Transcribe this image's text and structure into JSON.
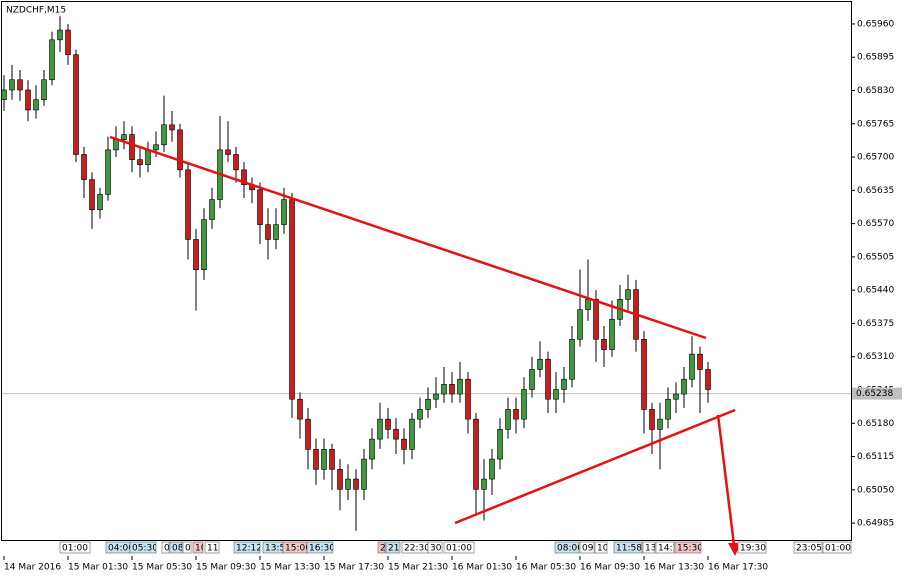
{
  "chart_data": {
    "type": "candlestick",
    "title": "NZDCHF,M15",
    "candles": [
      [
        0.65812,
        0.6586,
        0.6579,
        0.65831
      ],
      [
        0.65831,
        0.6588,
        0.65812,
        0.65851
      ],
      [
        0.65851,
        0.6587,
        0.6581,
        0.65831
      ],
      [
        0.65831,
        0.6585,
        0.6577,
        0.65792
      ],
      [
        0.65792,
        0.6584,
        0.65775,
        0.65812
      ],
      [
        0.65812,
        0.6587,
        0.658,
        0.65851
      ],
      [
        0.65851,
        0.65945,
        0.6584,
        0.65929
      ],
      [
        0.65929,
        0.65975,
        0.65905,
        0.65948
      ],
      [
        0.65948,
        0.6596,
        0.6588,
        0.659
      ],
      [
        0.659,
        0.6591,
        0.6569,
        0.65705
      ],
      [
        0.65705,
        0.6572,
        0.6562,
        0.65656
      ],
      [
        0.65656,
        0.6567,
        0.6556,
        0.65597
      ],
      [
        0.65597,
        0.6564,
        0.6558,
        0.65627
      ],
      [
        0.65627,
        0.6574,
        0.65615,
        0.65714
      ],
      [
        0.65714,
        0.6576,
        0.657,
        0.65734
      ],
      [
        0.65734,
        0.6577,
        0.65715,
        0.65744
      ],
      [
        0.65744,
        0.6576,
        0.6567,
        0.65695
      ],
      [
        0.65695,
        0.6572,
        0.6566,
        0.65685
      ],
      [
        0.65685,
        0.6573,
        0.6567,
        0.65714
      ],
      [
        0.65714,
        0.6575,
        0.657,
        0.65724
      ],
      [
        0.65724,
        0.6582,
        0.6571,
        0.65763
      ],
      [
        0.65763,
        0.6579,
        0.6573,
        0.65753
      ],
      [
        0.65753,
        0.65765,
        0.6566,
        0.65675
      ],
      [
        0.65675,
        0.6569,
        0.655,
        0.65539
      ],
      [
        0.65539,
        0.6556,
        0.654,
        0.6548
      ],
      [
        0.6548,
        0.656,
        0.6546,
        0.65578
      ],
      [
        0.65578,
        0.6564,
        0.6556,
        0.65617
      ],
      [
        0.65617,
        0.6578,
        0.656,
        0.65714
      ],
      [
        0.65714,
        0.6577,
        0.6569,
        0.65705
      ],
      [
        0.65705,
        0.6572,
        0.6565,
        0.65675
      ],
      [
        0.65675,
        0.6569,
        0.6562,
        0.65646
      ],
      [
        0.65646,
        0.6566,
        0.6561,
        0.65636
      ],
      [
        0.65636,
        0.6565,
        0.6553,
        0.65568
      ],
      [
        0.65568,
        0.656,
        0.655,
        0.65539
      ],
      [
        0.65539,
        0.656,
        0.6552,
        0.65568
      ],
      [
        0.65568,
        0.6564,
        0.6555,
        0.65617
      ],
      [
        0.65617,
        0.6563,
        0.6519,
        0.65227
      ],
      [
        0.65227,
        0.6524,
        0.6515,
        0.65188
      ],
      [
        0.65188,
        0.6521,
        0.6509,
        0.65129
      ],
      [
        0.65129,
        0.6515,
        0.6506,
        0.6509
      ],
      [
        0.6509,
        0.6515,
        0.6507,
        0.65129
      ],
      [
        0.65129,
        0.6514,
        0.6505,
        0.6509
      ],
      [
        0.6509,
        0.6511,
        0.6501,
        0.65051
      ],
      [
        0.65051,
        0.651,
        0.6503,
        0.65071
      ],
      [
        0.65071,
        0.6509,
        0.6497,
        0.65051
      ],
      [
        0.65051,
        0.6513,
        0.6503,
        0.6511
      ],
      [
        0.6511,
        0.6517,
        0.6509,
        0.65149
      ],
      [
        0.65149,
        0.6522,
        0.6513,
        0.65188
      ],
      [
        0.65188,
        0.6521,
        0.6515,
        0.65168
      ],
      [
        0.65168,
        0.6519,
        0.6512,
        0.65149
      ],
      [
        0.65149,
        0.6517,
        0.651,
        0.65129
      ],
      [
        0.65129,
        0.652,
        0.6511,
        0.65188
      ],
      [
        0.65188,
        0.6523,
        0.6517,
        0.65207
      ],
      [
        0.65207,
        0.6525,
        0.6519,
        0.65227
      ],
      [
        0.65227,
        0.6527,
        0.6521,
        0.65237
      ],
      [
        0.65237,
        0.6529,
        0.6522,
        0.65256
      ],
      [
        0.65256,
        0.6528,
        0.6522,
        0.65237
      ],
      [
        0.65237,
        0.653,
        0.6522,
        0.65266
      ],
      [
        0.65266,
        0.6528,
        0.6516,
        0.65188
      ],
      [
        0.65188,
        0.652,
        0.65,
        0.65051
      ],
      [
        0.65051,
        0.6511,
        0.6499,
        0.65071
      ],
      [
        0.65071,
        0.6513,
        0.6504,
        0.6511
      ],
      [
        0.6511,
        0.6519,
        0.6509,
        0.65168
      ],
      [
        0.65168,
        0.6523,
        0.6515,
        0.65207
      ],
      [
        0.65207,
        0.6523,
        0.6516,
        0.65188
      ],
      [
        0.65188,
        0.6527,
        0.6517,
        0.65246
      ],
      [
        0.65246,
        0.6531,
        0.6523,
        0.65285
      ],
      [
        0.65285,
        0.6534,
        0.6527,
        0.65305
      ],
      [
        0.65305,
        0.6532,
        0.652,
        0.65227
      ],
      [
        0.65227,
        0.6528,
        0.652,
        0.65246
      ],
      [
        0.65246,
        0.6529,
        0.6522,
        0.65266
      ],
      [
        0.65266,
        0.6537,
        0.6525,
        0.65344
      ],
      [
        0.65344,
        0.6548,
        0.6533,
        0.65402
      ],
      [
        0.65402,
        0.655,
        0.6538,
        0.65422
      ],
      [
        0.65422,
        0.6544,
        0.653,
        0.65344
      ],
      [
        0.65344,
        0.6537,
        0.6529,
        0.65324
      ],
      [
        0.65324,
        0.6542,
        0.6531,
        0.65383
      ],
      [
        0.65383,
        0.6545,
        0.6537,
        0.65422
      ],
      [
        0.65422,
        0.6547,
        0.654,
        0.65441
      ],
      [
        0.65441,
        0.6546,
        0.6532,
        0.65344
      ],
      [
        0.65344,
        0.6536,
        0.6516,
        0.65207
      ],
      [
        0.65207,
        0.6522,
        0.6512,
        0.65168
      ],
      [
        0.65168,
        0.6522,
        0.6509,
        0.65188
      ],
      [
        0.65188,
        0.6525,
        0.6517,
        0.65227
      ],
      [
        0.65227,
        0.6526,
        0.652,
        0.65237
      ],
      [
        0.65237,
        0.6529,
        0.6521,
        0.65266
      ],
      [
        0.65266,
        0.6535,
        0.6525,
        0.65315
      ],
      [
        0.65315,
        0.6533,
        0.652,
        0.65285
      ],
      [
        0.65285,
        0.653,
        0.6522,
        0.65246
      ]
    ],
    "ylim": [
      0.64952,
      0.65997
    ],
    "yticks": [
      {
        "value": 0.6596,
        "label": "0.65960"
      },
      0.65895,
      {
        "value": 0.6583,
        "label": "0.65830"
      },
      0.65765,
      {
        "value": 0.657,
        "label": "0.65700"
      },
      0.65635,
      {
        "value": 0.6557,
        "label": "0.65570"
      },
      0.65505,
      {
        "value": 0.6544,
        "label": "0.65440"
      },
      0.65375,
      {
        "value": 0.6531,
        "label": "0.65310"
      },
      0.65245,
      {
        "value": 0.6518,
        "label": "0.65180"
      },
      0.65115,
      {
        "value": 0.6505,
        "label": "0.65050"
      },
      0.64985
    ],
    "x_labels": [
      "14 Mar 2016",
      "15 Mar 01:30",
      "15 Mar 05:30",
      "15 Mar 09:30",
      "15 Mar 13:30",
      "15 Mar 17:30",
      "15 Mar 21:30",
      "16 Mar 01:30",
      "16 Mar 05:30",
      "16 Mar 09:30",
      "16 Mar 13:30",
      "16 Mar 17:30"
    ],
    "last_price": 0.65238,
    "up_color": "#3c9a3c",
    "down_color": "#c81e1e",
    "trendline_color": "#e81010",
    "events": [
      {
        "label": "01:00",
        "color": "#ffffff"
      },
      {
        "label": "04:00",
        "color": "#c6e4f0"
      },
      {
        "label": "05:30",
        "color": "#c6e4f0"
      },
      {
        "label": "0",
        "color": "#ffffff"
      },
      {
        "label": "08",
        "color": "#c6e4f0"
      },
      {
        "label": "0",
        "color": "#ffffff"
      },
      {
        "label": "10",
        "color": "#f5c6c6"
      },
      {
        "label": "11:",
        "color": "#ffffff"
      },
      {
        "label": "12:12",
        "color": "#c6e4f0"
      },
      {
        "label": "13:5",
        "color": "#c6e4f0"
      },
      {
        "label": "15:00",
        "color": "#f5c6c6"
      },
      {
        "label": "16:30",
        "color": "#c6e4f0"
      },
      {
        "label": "2",
        "color": "#f5c6c6"
      },
      {
        "label": "21:",
        "color": "#c6e4f0"
      },
      {
        "label": "22:30",
        "color": "#ffffff"
      },
      {
        "label": "30",
        "color": "#ffffff"
      },
      {
        "label": "01:00",
        "color": "#ffffff"
      },
      {
        "label": "08:00",
        "color": "#c6e4f0"
      },
      {
        "label": "09:",
        "color": "#ffffff"
      },
      {
        "label": "10",
        "color": "#ffffff"
      },
      {
        "label": "11:58",
        "color": "#c6e4f0"
      },
      {
        "label": "13:",
        "color": "#ffffff"
      },
      {
        "label": "14:1",
        "color": "#ffffff"
      },
      {
        "label": "15:30",
        "color": "#f5c6c6"
      },
      {
        "label": "19:30",
        "color": "#ffffff"
      },
      {
        "label": "23:05",
        "color": "#ffffff"
      },
      {
        "label": "01:00",
        "color": "#ffffff"
      }
    ]
  }
}
